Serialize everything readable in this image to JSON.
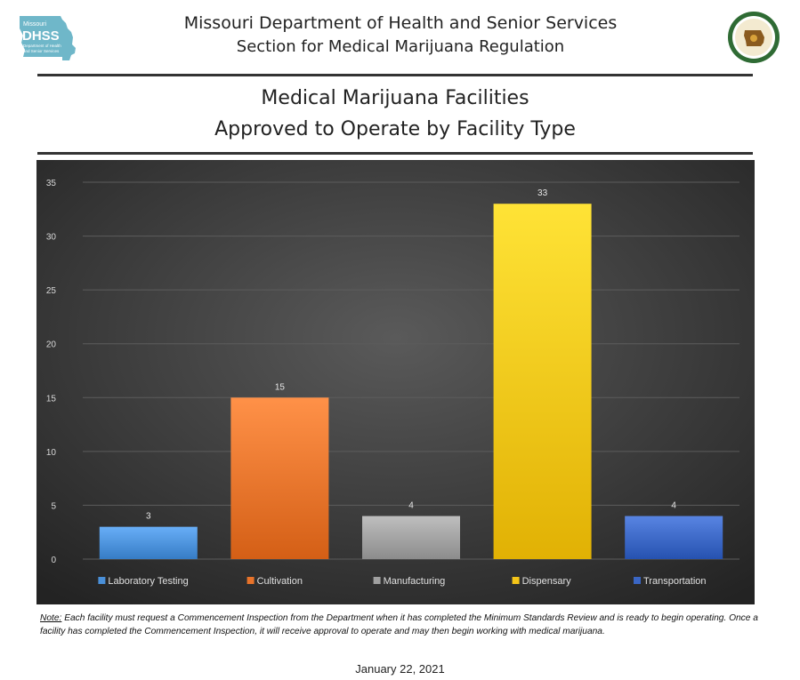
{
  "header": {
    "logo_line1": "Missouri",
    "logo_line2": "DHSS",
    "logo_line3": "Department of Health",
    "logo_line4": "and Senior Services",
    "org_line1": "Missouri Department of Health and Senior Services",
    "org_line2": "Section for Medical Marijuana Regulation"
  },
  "chart_data": {
    "type": "bar",
    "title_line1": "Medical Marijuana Facilities",
    "title_line2": "Approved to Operate by Facility Type",
    "categories": [
      "Laboratory Testing",
      "Cultivation",
      "Manufacturing",
      "Dispensary",
      "Transportation"
    ],
    "values": [
      3,
      15,
      4,
      33,
      4
    ],
    "colors": [
      "#4a90d9",
      "#e8732a",
      "#a0a0a0",
      "#f5c518",
      "#3a66c4"
    ],
    "ylim": [
      0,
      35
    ],
    "yticks": [
      0,
      5,
      10,
      15,
      20,
      25,
      30,
      35
    ],
    "grid": true,
    "legend": "bottom"
  },
  "footer": {
    "note_label": "Note:",
    "note_text": " Each facility must request a Commencement Inspection from the Department when it has completed the Minimum Standards Review and is ready to begin operating. Once a facility has completed the Commencement Inspection, it will receive approval to operate and may then begin working with medical marijuana.",
    "date": "January 22, 2021"
  }
}
